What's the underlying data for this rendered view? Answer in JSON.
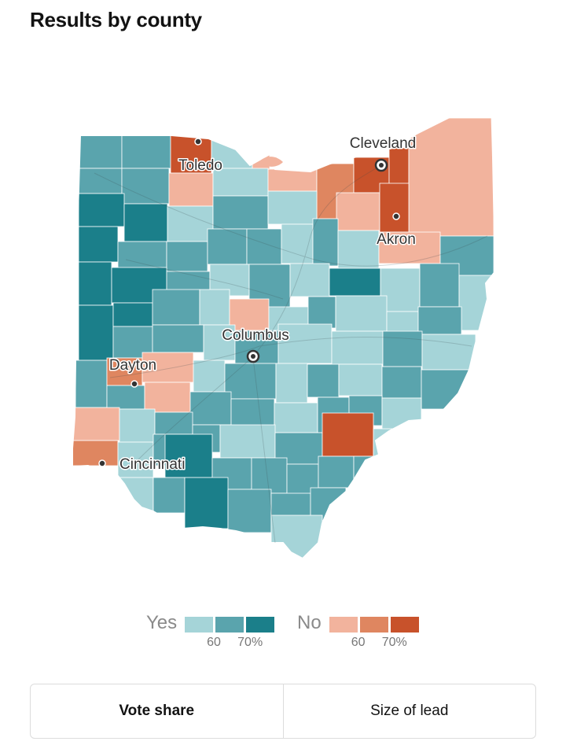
{
  "title": "Results by county",
  "colors": {
    "yes_light": "#a5d4d8",
    "yes_mid": "#5aa4ad",
    "yes_dark": "#1b7f8a",
    "no_light": "#f2b39d",
    "no_mid": "#df8660",
    "no_dark": "#c8522b",
    "county_border": "#ffffff"
  },
  "map": {
    "region": "Ohio",
    "cities": [
      {
        "name": "Toledo",
        "type": "dot"
      },
      {
        "name": "Cleveland",
        "type": "ring"
      },
      {
        "name": "Akron",
        "type": "dot"
      },
      {
        "name": "Columbus",
        "type": "ring"
      },
      {
        "name": "Dayton",
        "type": "dot"
      },
      {
        "name": "Cincinnati",
        "type": "dot"
      }
    ]
  },
  "legend": {
    "yes_label": "Yes",
    "no_label": "No",
    "yes_ticks": [
      "60",
      "70%"
    ],
    "no_ticks": [
      "60",
      "70%"
    ]
  },
  "toggle": {
    "options": [
      "Vote share",
      "Size of lead"
    ],
    "selected": "Vote share"
  }
}
